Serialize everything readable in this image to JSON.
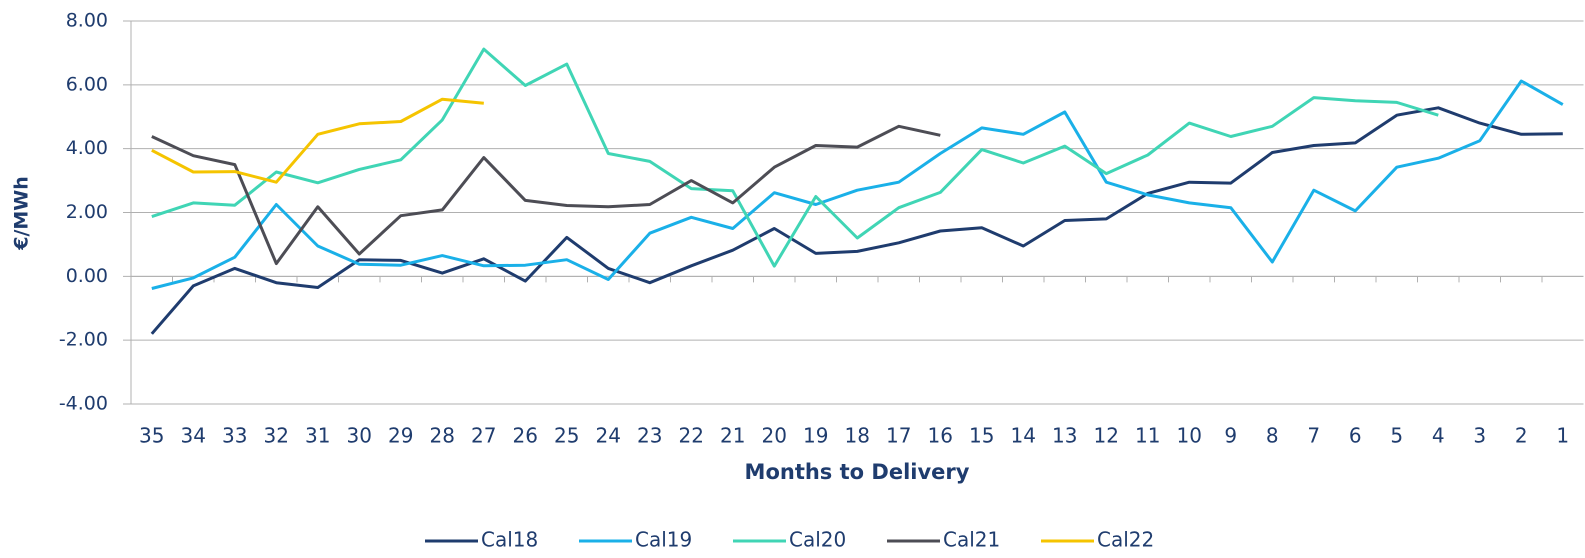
{
  "chart_data": {
    "type": "line",
    "y_label": "€/MWh",
    "x_label": "Months to Delivery",
    "categories": [
      "35",
      "34",
      "33",
      "32",
      "31",
      "30",
      "29",
      "28",
      "27",
      "26",
      "25",
      "24",
      "23",
      "22",
      "21",
      "20",
      "19",
      "18",
      "17",
      "16",
      "15",
      "14",
      "13",
      "12",
      "11",
      "10",
      "9",
      "8",
      "7",
      "6",
      "5",
      "4",
      "3",
      "2",
      "1"
    ],
    "series": [
      {
        "name": "Cal18",
        "color": "#1f3c6e",
        "values": [
          -1.8,
          -0.3,
          0.25,
          -0.2,
          -0.35,
          0.52,
          0.5,
          0.1,
          0.55,
          -0.15,
          1.22,
          0.25,
          -0.2,
          0.33,
          0.82,
          1.5,
          0.72,
          0.78,
          1.05,
          1.42,
          1.52,
          0.95,
          1.75,
          1.8,
          2.6,
          2.95,
          2.92,
          3.88,
          4.1,
          4.18,
          5.05,
          5.28,
          4.8,
          4.45,
          4.47
        ]
      },
      {
        "name": "Cal19",
        "color": "#1ab0e8",
        "values": [
          -0.38,
          -0.05,
          0.6,
          2.25,
          0.95,
          0.38,
          0.35,
          0.65,
          0.33,
          0.35,
          0.52,
          -0.1,
          1.35,
          1.85,
          1.5,
          2.62,
          2.25,
          2.7,
          2.95,
          3.85,
          4.65,
          4.45,
          5.15,
          2.95,
          2.55,
          2.3,
          2.15,
          0.45,
          2.7,
          2.05,
          3.42,
          3.7,
          4.25,
          6.12,
          5.38
        ]
      },
      {
        "name": "Cal20",
        "color": "#40d5b5",
        "values": [
          1.87,
          2.3,
          2.23,
          3.27,
          2.93,
          3.35,
          3.65,
          4.9,
          7.12,
          5.98,
          6.65,
          3.85,
          3.6,
          2.75,
          2.68,
          0.32,
          2.5,
          1.2,
          2.15,
          2.63,
          3.97,
          3.55,
          4.08,
          3.22,
          3.8,
          4.8,
          4.38,
          4.7,
          5.6,
          5.5,
          5.45,
          5.05,
          null,
          null,
          null
        ]
      },
      {
        "name": "Cal21",
        "color": "#4d4d55",
        "values": [
          4.38,
          3.78,
          3.5,
          0.4,
          2.18,
          0.7,
          1.9,
          2.08,
          3.72,
          2.38,
          2.22,
          2.18,
          2.25,
          3.0,
          2.3,
          3.42,
          4.1,
          4.05,
          4.7,
          4.42,
          null,
          null,
          null,
          null,
          null,
          null,
          null,
          null,
          null,
          null,
          null,
          null,
          null,
          null,
          null
        ]
      },
      {
        "name": "Cal22",
        "color": "#f5c400",
        "values": [
          3.95,
          3.27,
          3.28,
          2.95,
          4.45,
          4.78,
          4.85,
          5.55,
          5.42,
          null,
          null,
          null,
          null,
          null,
          null,
          null,
          null,
          null,
          null,
          null,
          null,
          null,
          null,
          null,
          null,
          null,
          null,
          null,
          null,
          null,
          null,
          null,
          null,
          null,
          null
        ]
      }
    ],
    "ylim": [
      -4,
      8
    ],
    "yticks": [
      {
        "value": -4,
        "label": "-4.00"
      },
      {
        "value": -2,
        "label": "-2.00"
      },
      {
        "value": 0,
        "label": "0.00"
      },
      {
        "value": 2,
        "label": "2.00"
      },
      {
        "value": 4,
        "label": "4.00"
      },
      {
        "value": 6,
        "label": "6.00"
      },
      {
        "value": 8,
        "label": "8.00"
      }
    ],
    "grid": true,
    "legend": "bottom"
  }
}
